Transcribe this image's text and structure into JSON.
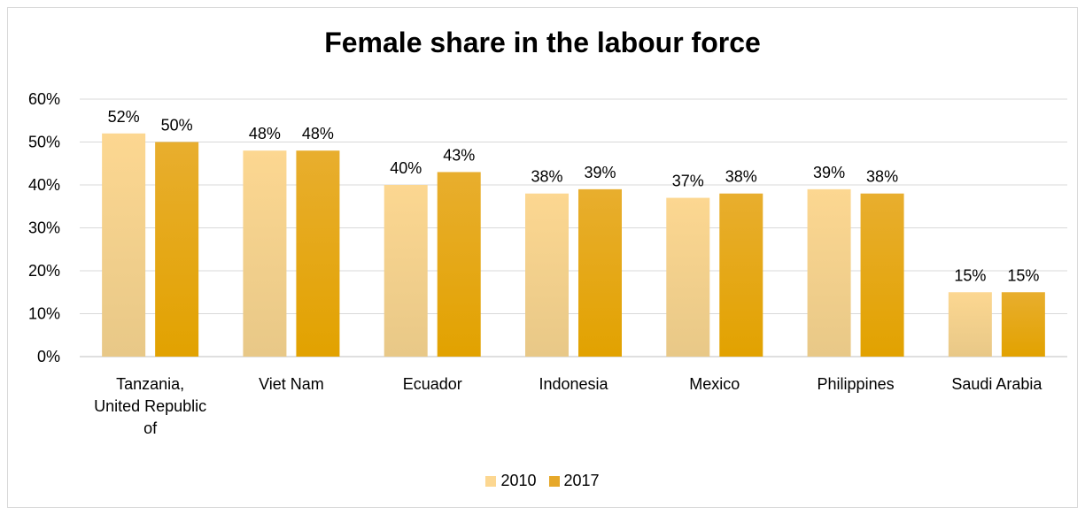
{
  "chart_data": {
    "type": "bar",
    "title": "Female share in the labour force",
    "categories": [
      [
        "Tanzania,",
        "United Republic",
        "of"
      ],
      [
        "Viet Nam"
      ],
      [
        "Ecuador"
      ],
      [
        "Indonesia"
      ],
      [
        "Mexico"
      ],
      [
        "Philippines"
      ],
      [
        "Saudi Arabia"
      ]
    ],
    "series": [
      {
        "name": "2010",
        "color_top": "#fcd791",
        "color_bottom": "#e8c887",
        "values": [
          0.52,
          0.48,
          0.4,
          0.38,
          0.37,
          0.39,
          0.15
        ],
        "labels": [
          "52%",
          "48%",
          "40%",
          "38%",
          "37%",
          "39%",
          "15%"
        ]
      },
      {
        "name": "2017",
        "color_top": "#e8ae2e",
        "color_bottom": "#e2a200",
        "values": [
          0.5,
          0.48,
          0.43,
          0.39,
          0.38,
          0.38,
          0.15
        ],
        "labels": [
          "50%",
          "48%",
          "43%",
          "39%",
          "38%",
          "38%",
          "15%"
        ]
      }
    ],
    "ylim": [
      0,
      0.6
    ],
    "yticks": [
      "0%",
      "10%",
      "20%",
      "30%",
      "40%",
      "50%",
      "60%"
    ],
    "grid": true,
    "legend_position": "bottom"
  }
}
